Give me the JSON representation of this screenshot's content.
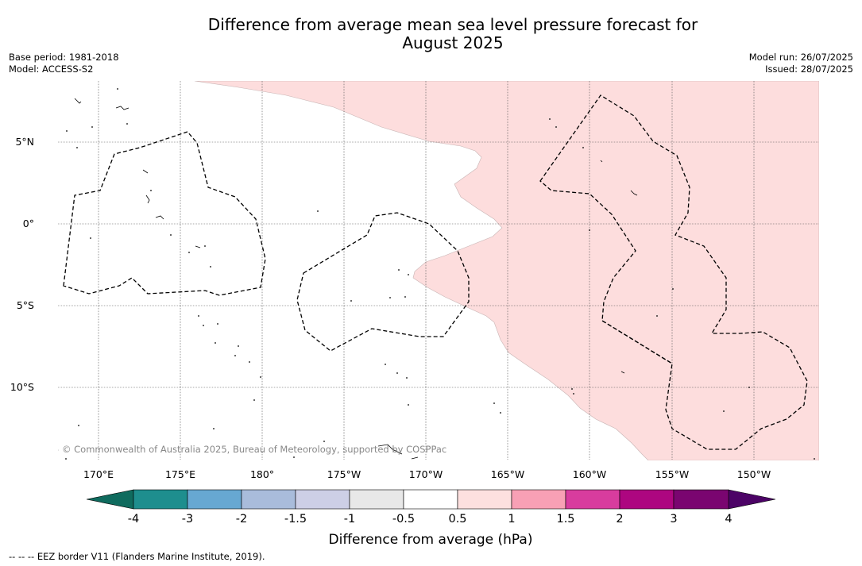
{
  "title_line1": "Difference from average mean sea level pressure forecast for",
  "title_line2": "August 2025",
  "meta_left": [
    "Base period: 1981-2018",
    "Model: ACCESS-S2"
  ],
  "meta_right": [
    "Model run: 26/07/2025",
    "Issued: 28/07/2025"
  ],
  "lat_labels": [
    "5°N",
    "0°",
    "5°S",
    "10°S"
  ],
  "lon_labels": [
    "170°E",
    "175°E",
    "180°",
    "175°W",
    "170°W",
    "165°W",
    "160°W",
    "155°W",
    "150°W"
  ],
  "copyright": "© Commonwealth of Australia 2025, Bureau of Meteorology, supported by COSPPac",
  "colorbar": {
    "title": "Difference from average (hPa)",
    "tick_labels": [
      "-4",
      "-3",
      "-2",
      "-1.5",
      "-1",
      "-0.5",
      "0.5",
      "1",
      "1.5",
      "2",
      "3",
      "4"
    ],
    "colors": [
      "#1e8e8e",
      "#67a8d2",
      "#a9bcdb",
      "#cdcfe6",
      "#e8e8e8",
      "#ffffff",
      "#fde0df",
      "#f8a0b5",
      "#d83c9e",
      "#ad0680",
      "#7a0570"
    ],
    "under_color": "#0f6b5e",
    "over_color": "#4c0366"
  },
  "map": {
    "shaded_region_color": "#fddddd",
    "shaded_region_meaning": "0.5 to 1"
  },
  "footer": "--  --  -- EEZ border V11 (Flanders Marine Institute, 2019)."
}
